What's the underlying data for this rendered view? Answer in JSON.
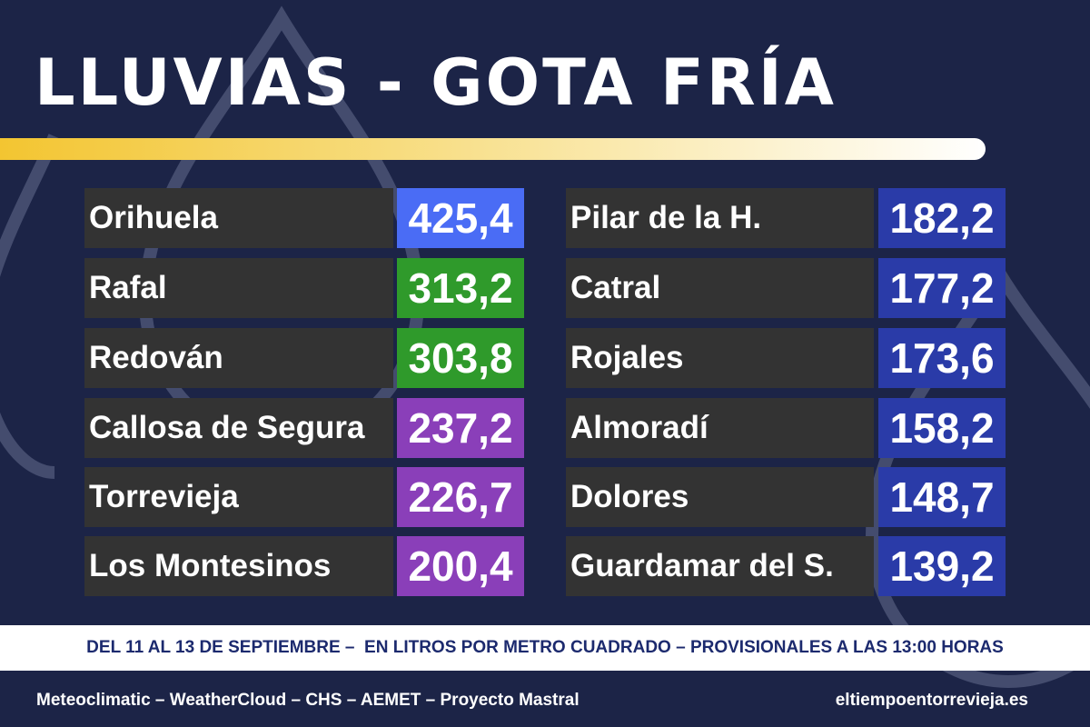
{
  "header": {
    "title": "LLUVIAS - GOTA FRÍA"
  },
  "table": {
    "columns": [
      {
        "rows": [
          {
            "name": "Orihuela",
            "value": "425,4",
            "color": "#4a6cf5"
          },
          {
            "name": "Rafal",
            "value": "313,2",
            "color": "#2f9a2b"
          },
          {
            "name": "Redován",
            "value": "303,8",
            "color": "#2f9a2b"
          },
          {
            "name": "Callosa de Segura",
            "value": "237,2",
            "color": "#8a3fb9"
          },
          {
            "name": "Torrevieja",
            "value": "226,7",
            "color": "#8a3fb9"
          },
          {
            "name": "Los Montesinos",
            "value": "200,4",
            "color": "#8a3fb9"
          }
        ]
      },
      {
        "rows": [
          {
            "name": "Pilar de la H.",
            "value": "182,2",
            "color": "#2a3ba8"
          },
          {
            "name": "Catral",
            "value": "177,2",
            "color": "#2a3ba8"
          },
          {
            "name": "Rojales",
            "value": "173,6",
            "color": "#2a3ba8"
          },
          {
            "name": "Almoradí",
            "value": "158,2",
            "color": "#2a3ba8"
          },
          {
            "name": "Dolores",
            "value": "148,7",
            "color": "#2a3ba8"
          },
          {
            "name": "Guardamar del S.",
            "value": "139,2",
            "color": "#2a3ba8"
          }
        ]
      }
    ]
  },
  "footer": {
    "note": "DEL 11 AL 13 DE SEPTIEMBRE –  EN LITROS POR METRO CUADRADO – PROVISIONALES A LAS 13:00 HORAS",
    "sources": "Meteoclimatic – WeatherCloud – CHS – AEMET – Proyecto Mastral",
    "website": "eltiempoentorrevieja.es"
  }
}
